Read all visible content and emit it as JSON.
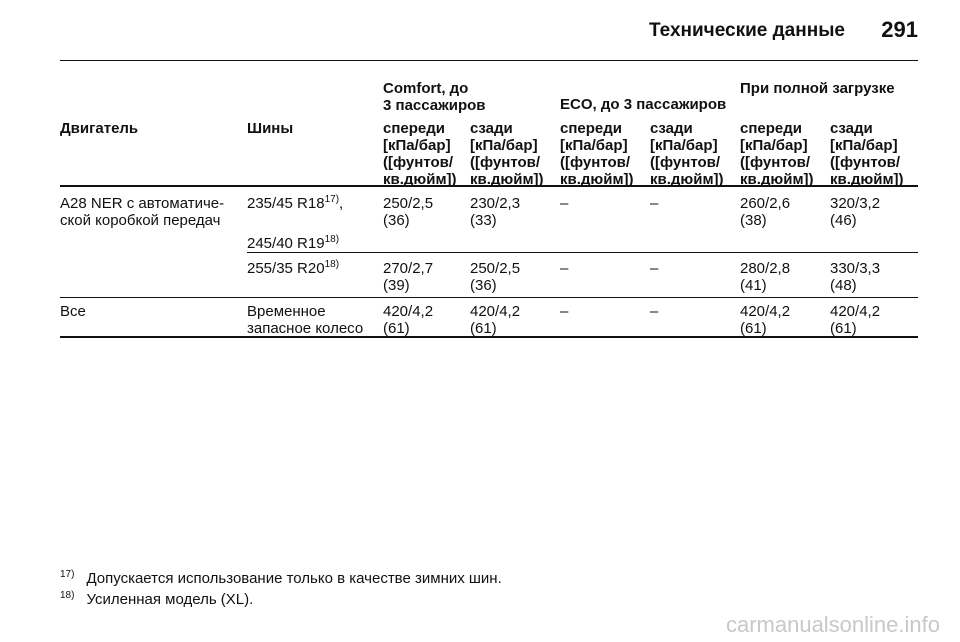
{
  "header": {
    "title": "Технические данные",
    "page": "291"
  },
  "table": {
    "groups": [
      "Comfort, до\n3 пассажиров",
      "ECO, до 3 пассажиров",
      "При полной загрузке"
    ],
    "columns": [
      "Двигатель",
      "Шины",
      "спереди",
      "сзади",
      "спереди",
      "сзади",
      "спереди",
      "сзади"
    ],
    "units": [
      "[кПа/бар]\n([фунтов/\nкв.дюйм])",
      "[кПа/бар]\n([фунтов/\nкв.дюйм])",
      "[кПа/бар]\n([фунтов/\nкв.дюйм])",
      "[кПа/бар]\n([фунтов/\nкв.дюйм])",
      "[кПа/бар]\n([фунтов/\nкв.дюйм])",
      "[кПа/бар]\n([фунтов/\nкв.дюйм])"
    ],
    "rows": [
      {
        "engine": "A28 NER с автоматиче-\nской коробкой передач",
        "tires": [
          {
            "size": "235/45 R18",
            "note": "17)",
            "after": ","
          },
          {
            "size": "245/40 R19",
            "note": "18)"
          }
        ],
        "values": [
          "250/2,5\n(36)",
          "230/2,3\n(33)",
          "–",
          "–",
          "260/2,6\n(38)",
          "320/3,2\n(46)"
        ]
      },
      {
        "tires": [
          {
            "size": "255/35 R20",
            "note": "18)"
          }
        ],
        "values": [
          "270/2,7\n(39)",
          "250/2,5\n(36)",
          "–",
          "–",
          "280/2,8\n(41)",
          "330/3,3\n(48)"
        ]
      },
      {
        "engine": "Все",
        "tires": [
          {
            "size": "Временное\nзапасное колесо"
          }
        ],
        "values": [
          "420/4,2\n(61)",
          "420/4,2\n(61)",
          "–",
          "–",
          "420/4,2\n(61)",
          "420/4,2\n(61)"
        ]
      }
    ]
  },
  "footnotes": [
    {
      "mark": "17)",
      "text": "Допускается использование только в качестве зимних шин."
    },
    {
      "mark": "18)",
      "text": "Усиленная модель (XL)."
    }
  ],
  "watermark": "carmanualsonline.info"
}
